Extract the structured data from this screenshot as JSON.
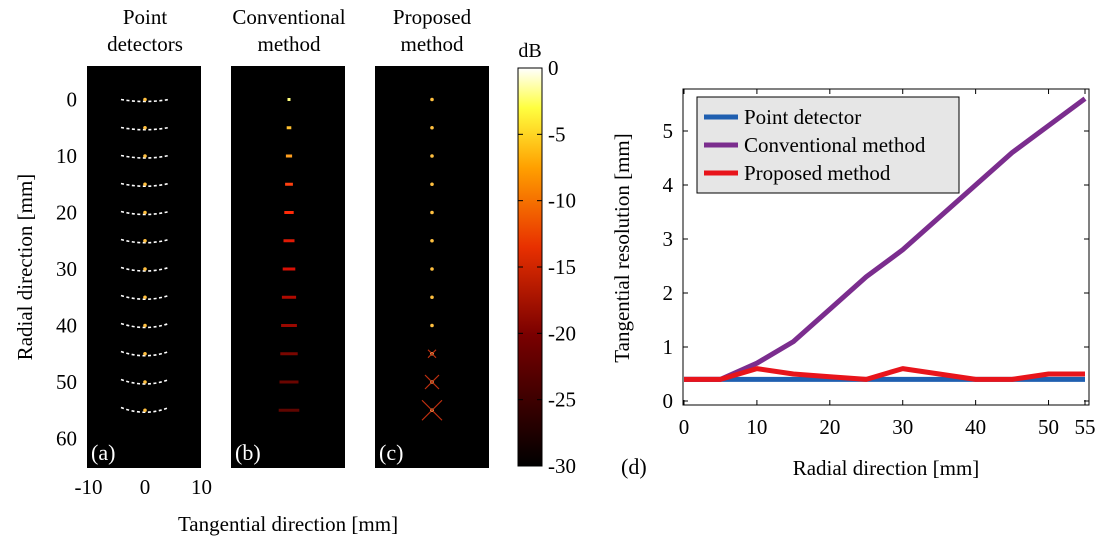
{
  "figure": {
    "panels_left": [
      {
        "title_line1": "Point",
        "title_line2": "detectors",
        "letter": "(a)"
      },
      {
        "title_line1": "Conventional",
        "title_line2": "method",
        "letter": "(b)"
      },
      {
        "title_line1": "Proposed",
        "title_line2": "method",
        "letter": "(c)"
      }
    ],
    "left_ylabel": "Radial direction [mm]",
    "left_xlabel": "Tangential direction [mm]",
    "left_yticks": [
      "0",
      "10",
      "20",
      "30",
      "40",
      "50",
      "60"
    ],
    "left_xticks": [
      "-10",
      "0",
      "10"
    ],
    "colorbar": {
      "unit": "dB",
      "ticks": [
        "0",
        "-5",
        "-10",
        "-15",
        "-20",
        "-25",
        "-30"
      ]
    },
    "panel_d_letter": "(d)"
  },
  "chart_data": [
    {
      "type": "heatmap",
      "panel": "(a)",
      "title": "Point detectors",
      "xlabel": "Tangential direction [mm]",
      "ylabel": "Radial direction [mm]",
      "xlim": [
        -10,
        10
      ],
      "ylim": [
        60,
        -5
      ],
      "point_targets_mm": [
        0,
        5,
        10,
        15,
        20,
        25,
        30,
        35,
        40,
        45,
        50,
        55
      ],
      "colorbar_range_db": [
        -30,
        0
      ]
    },
    {
      "type": "heatmap",
      "panel": "(b)",
      "title": "Conventional method",
      "point_targets_mm": [
        0,
        5,
        10,
        15,
        20,
        25,
        30,
        35,
        40,
        45,
        50,
        55
      ],
      "colorbar_range_db": [
        -30,
        0
      ]
    },
    {
      "type": "heatmap",
      "panel": "(c)",
      "title": "Proposed method",
      "point_targets_mm": [
        0,
        5,
        10,
        15,
        20,
        25,
        30,
        35,
        40,
        45,
        50,
        55
      ],
      "colorbar_range_db": [
        -30,
        0
      ]
    },
    {
      "type": "line",
      "panel": "(d)",
      "xlabel": "Radial direction [mm]",
      "ylabel": "Tangential resolution [mm]",
      "xlim": [
        0,
        55
      ],
      "ylim": [
        0,
        5.6
      ],
      "xticks": [
        "0",
        "10",
        "20",
        "30",
        "40",
        "50",
        "55"
      ],
      "yticks": [
        "0",
        "1",
        "2",
        "3",
        "4",
        "5"
      ],
      "x": [
        0,
        5,
        10,
        15,
        20,
        25,
        30,
        35,
        40,
        45,
        50,
        55
      ],
      "legend_position": "top-left",
      "series": [
        {
          "name": "Point detector",
          "color": "#1f5fb0",
          "values": [
            0.4,
            0.4,
            0.4,
            0.4,
            0.4,
            0.4,
            0.4,
            0.4,
            0.4,
            0.4,
            0.4,
            0.4
          ]
        },
        {
          "name": "Conventional method",
          "color": "#7b2d8e",
          "values": [
            0.4,
            0.4,
            0.7,
            1.1,
            1.7,
            2.3,
            2.8,
            3.4,
            4.0,
            4.6,
            5.1,
            5.6
          ]
        },
        {
          "name": "Proposed method",
          "color": "#e8141b",
          "values": [
            0.4,
            0.4,
            0.6,
            0.5,
            0.45,
            0.4,
            0.6,
            0.5,
            0.4,
            0.4,
            0.5,
            0.5
          ]
        }
      ]
    }
  ]
}
